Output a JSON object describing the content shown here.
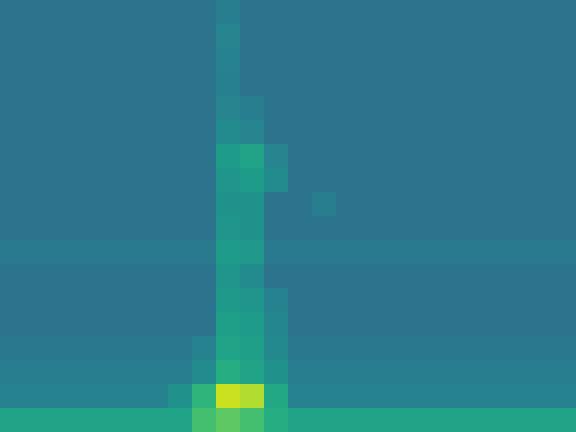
{
  "chart_data": {
    "type": "heatmap",
    "color": "viridis",
    "tick_labels": false,
    "zlim": [
      0,
      100
    ],
    "z": [
      [
        38,
        38,
        38,
        38,
        38,
        38,
        38,
        38,
        38,
        42,
        38,
        38,
        38,
        38,
        38,
        38,
        38,
        38,
        38,
        38,
        38,
        38,
        38,
        38
      ],
      [
        38,
        38,
        38,
        38,
        38,
        38,
        38,
        38,
        38,
        45,
        38,
        38,
        38,
        38,
        38,
        38,
        38,
        38,
        38,
        38,
        38,
        38,
        38,
        38
      ],
      [
        38,
        38,
        38,
        38,
        38,
        38,
        38,
        38,
        38,
        44,
        38,
        38,
        38,
        38,
        38,
        38,
        38,
        38,
        38,
        38,
        38,
        38,
        38,
        38
      ],
      [
        38,
        38,
        38,
        38,
        38,
        38,
        38,
        38,
        38,
        43,
        38,
        38,
        38,
        38,
        38,
        38,
        38,
        38,
        38,
        38,
        38,
        38,
        38,
        38
      ],
      [
        38,
        38,
        38,
        38,
        38,
        38,
        38,
        38,
        38,
        45,
        42,
        38,
        38,
        38,
        38,
        38,
        38,
        38,
        38,
        38,
        38,
        38,
        38,
        38
      ],
      [
        38,
        38,
        38,
        38,
        38,
        38,
        38,
        38,
        38,
        48,
        45,
        38,
        38,
        38,
        38,
        38,
        38,
        38,
        38,
        38,
        38,
        38,
        38,
        38
      ],
      [
        38,
        38,
        38,
        38,
        38,
        38,
        38,
        38,
        38,
        55,
        58,
        45,
        38,
        38,
        38,
        38,
        38,
        38,
        38,
        38,
        38,
        38,
        38,
        38
      ],
      [
        38,
        38,
        38,
        38,
        38,
        38,
        38,
        38,
        38,
        52,
        55,
        48,
        38,
        38,
        38,
        38,
        38,
        38,
        38,
        38,
        38,
        38,
        38,
        38
      ],
      [
        38,
        38,
        38,
        38,
        38,
        38,
        38,
        38,
        38,
        50,
        50,
        38,
        38,
        42,
        38,
        38,
        38,
        38,
        38,
        38,
        38,
        38,
        38,
        38
      ],
      [
        38,
        38,
        38,
        38,
        38,
        38,
        38,
        38,
        38,
        52,
        50,
        38,
        38,
        38,
        38,
        38,
        38,
        38,
        38,
        38,
        38,
        38,
        38,
        38
      ],
      [
        41,
        41,
        41,
        41,
        41,
        41,
        41,
        41,
        41,
        55,
        53,
        41,
        41,
        41,
        41,
        41,
        41,
        41,
        41,
        41,
        41,
        41,
        41,
        41
      ],
      [
        38,
        38,
        38,
        38,
        38,
        38,
        38,
        38,
        38,
        52,
        48,
        38,
        38,
        38,
        38,
        38,
        38,
        38,
        38,
        38,
        38,
        38,
        38,
        38
      ],
      [
        38,
        38,
        38,
        38,
        38,
        38,
        38,
        38,
        38,
        54,
        52,
        44,
        38,
        38,
        38,
        38,
        38,
        38,
        38,
        38,
        38,
        38,
        38,
        38
      ],
      [
        38,
        38,
        38,
        38,
        38,
        38,
        38,
        38,
        38,
        56,
        55,
        46,
        38,
        38,
        38,
        38,
        38,
        38,
        38,
        38,
        38,
        38,
        38,
        38
      ],
      [
        40,
        40,
        40,
        40,
        40,
        40,
        40,
        40,
        44,
        58,
        56,
        47,
        40,
        40,
        40,
        40,
        40,
        40,
        40,
        40,
        40,
        40,
        40,
        40
      ],
      [
        42,
        42,
        42,
        42,
        42,
        42,
        42,
        42,
        48,
        62,
        58,
        50,
        42,
        42,
        42,
        42,
        42,
        42,
        42,
        42,
        42,
        42,
        42,
        42
      ],
      [
        44,
        44,
        44,
        44,
        44,
        44,
        44,
        50,
        65,
        92,
        88,
        60,
        44,
        44,
        44,
        44,
        44,
        44,
        44,
        44,
        44,
        44,
        44,
        44
      ],
      [
        58,
        58,
        58,
        58,
        58,
        58,
        58,
        58,
        70,
        75,
        70,
        62,
        58,
        58,
        58,
        58,
        58,
        58,
        58,
        58,
        58,
        58,
        58,
        58
      ]
    ]
  }
}
